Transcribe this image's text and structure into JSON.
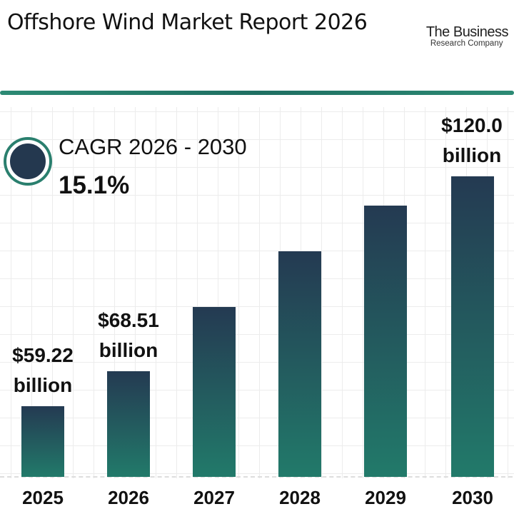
{
  "header": {
    "title": "Offshore Wind Market Report 2026",
    "logo_line1": "The Business",
    "logo_line2": "Research Company"
  },
  "cagr": {
    "label": "CAGR 2026 - 2030",
    "value": "15.1%"
  },
  "colors": {
    "bar_top": "#243a52",
    "bar_bottom": "#227a6a",
    "accent": "#2a7f6e"
  },
  "chart_data": {
    "type": "bar",
    "title": "Offshore Wind Market Report 2026",
    "categories": [
      "2025",
      "2026",
      "2027",
      "2028",
      "2029",
      "2030"
    ],
    "values": [
      59.22,
      68.51,
      85.5,
      100.2,
      112.3,
      120.0
    ],
    "value_labels": [
      {
        "amount": "$59.22",
        "unit": "billion"
      },
      {
        "amount": "$68.51",
        "unit": "billion"
      },
      null,
      null,
      null,
      {
        "amount": "$120.0",
        "unit": "billion"
      }
    ],
    "xlabel": "",
    "ylabel": "",
    "grid": true
  }
}
